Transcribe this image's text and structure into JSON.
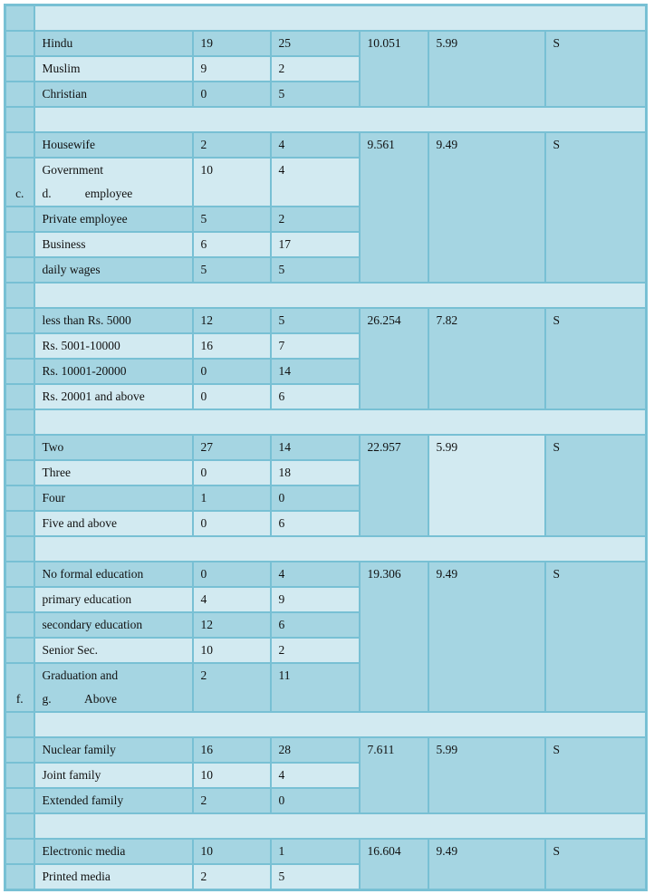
{
  "colors": {
    "dark_cell": "#a5d5e2",
    "light_cell": "#d2eaf1",
    "border": "#78c0d4"
  },
  "groups": [
    {
      "rows": [
        {
          "marker": "",
          "category": "Hindu",
          "a": "19",
          "b": "25"
        },
        {
          "marker": "",
          "category": "Muslim",
          "a": "9",
          "b": "2"
        },
        {
          "marker": "",
          "category": "Christian",
          "a": "0",
          "b": "5"
        }
      ],
      "chi_square": "10.051",
      "table_value": "5.99",
      "result": "S",
      "table_value_light": false
    },
    {
      "rows": [
        {
          "marker": "",
          "category": "Housewife",
          "a": "2",
          "b": "4"
        },
        {
          "marker": "c.",
          "category": "Government\nd.           employee",
          "a": "10",
          "b": "4"
        },
        {
          "marker": "",
          "category": "Private employee",
          "a": "5",
          "b": "2"
        },
        {
          "marker": "",
          "category": "Business",
          "a": "6",
          "b": "17"
        },
        {
          "marker": "",
          "category": "daily wages",
          "a": "5",
          "b": "5"
        }
      ],
      "chi_square": "9.561",
      "table_value": "9.49",
      "result": "S",
      "table_value_light": false
    },
    {
      "rows": [
        {
          "marker": "",
          "category": "less than Rs. 5000",
          "a": "12",
          "b": "5"
        },
        {
          "marker": "",
          "category": "Rs. 5001-10000",
          "a": "16",
          "b": "7"
        },
        {
          "marker": "",
          "category": "Rs. 10001-20000",
          "a": "0",
          "b": "14"
        },
        {
          "marker": "",
          "category": "Rs. 20001 and above",
          "a": "0",
          "b": "6"
        }
      ],
      "chi_square": "26.254",
      "table_value": "7.82",
      "result": "S",
      "table_value_light": false
    },
    {
      "rows": [
        {
          "marker": "",
          "category": "Two",
          "a": "27",
          "b": "14"
        },
        {
          "marker": "",
          "category": "Three",
          "a": "0",
          "b": "18"
        },
        {
          "marker": "",
          "category": "Four",
          "a": "1",
          "b": "0"
        },
        {
          "marker": "",
          "category": "Five and above",
          "a": "0",
          "b": "6"
        }
      ],
      "chi_square": "22.957",
      "table_value": "5.99",
      "result": "S",
      "table_value_light": true
    },
    {
      "rows": [
        {
          "marker": "",
          "category": "No formal education",
          "a": "0",
          "b": "4"
        },
        {
          "marker": "",
          "category": "primary education",
          "a": "4",
          "b": "9"
        },
        {
          "marker": "",
          "category": "secondary education",
          "a": "12",
          "b": "6"
        },
        {
          "marker": "",
          "category": "Senior Sec.",
          "a": "10",
          "b": "2"
        },
        {
          "marker": "f.",
          "category": "Graduation and\ng.           Above",
          "a": "2",
          "b": "11"
        }
      ],
      "chi_square": "19.306",
      "table_value": "9.49",
      "result": "S",
      "table_value_light": false
    },
    {
      "rows": [
        {
          "marker": "",
          "category": "Nuclear family",
          "a": "16",
          "b": "28"
        },
        {
          "marker": "",
          "category": "Joint family",
          "a": "10",
          "b": "4"
        },
        {
          "marker": "",
          "category": "Extended family",
          "a": "2",
          "b": "0"
        }
      ],
      "chi_square": "7.611",
      "table_value": "5.99",
      "result": "S",
      "table_value_light": false
    },
    {
      "rows": [
        {
          "marker": "",
          "category": "Electronic media",
          "a": "10",
          "b": "1"
        },
        {
          "marker": "",
          "category": "Printed media",
          "a": "2",
          "b": "5"
        }
      ],
      "chi_square": "16.604",
      "table_value": "9.49",
      "result": "S",
      "table_value_light": false
    }
  ]
}
